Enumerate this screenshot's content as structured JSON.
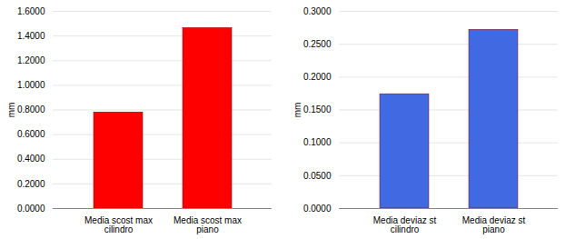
{
  "chart_data": [
    {
      "type": "bar",
      "categories": [
        "Media scost max\ncilindro",
        "Media scost max\npiano"
      ],
      "values": [
        0.78,
        1.465
      ],
      "color": "#FF0000",
      "ylabel": "mm",
      "ylim": [
        0,
        1.6
      ],
      "yticks": [
        {
          "value": 0,
          "label": "0.0000"
        },
        {
          "value": 0.2,
          "label": "0.2000"
        },
        {
          "value": 0.4,
          "label": "0.4000"
        },
        {
          "value": 0.6,
          "label": "0.6000"
        },
        {
          "value": 0.8,
          "label": "0.8000"
        },
        {
          "value": 1.0,
          "label": "1.0000"
        },
        {
          "value": 1.2,
          "label": "1.2000"
        },
        {
          "value": 1.4,
          "label": "1.4000"
        },
        {
          "value": 1.6,
          "label": "1.6000"
        }
      ],
      "grid": true
    },
    {
      "type": "bar",
      "categories": [
        "Media deviaz st\ncilindro",
        "Media deviaz st\npiano"
      ],
      "values": [
        0.174,
        0.272
      ],
      "color": "#4169E1",
      "ylabel": "mm",
      "ylim": [
        0,
        0.3
      ],
      "yticks": [
        {
          "value": 0,
          "label": "0.0000"
        },
        {
          "value": 0.05,
          "label": "0.0500"
        },
        {
          "value": 0.1,
          "label": "0.1000"
        },
        {
          "value": 0.15,
          "label": "0.1500"
        },
        {
          "value": 0.2,
          "label": "0.2000"
        },
        {
          "value": 0.25,
          "label": "0.2500"
        },
        {
          "value": 0.3,
          "label": "0.3000"
        }
      ],
      "grid": true
    }
  ]
}
